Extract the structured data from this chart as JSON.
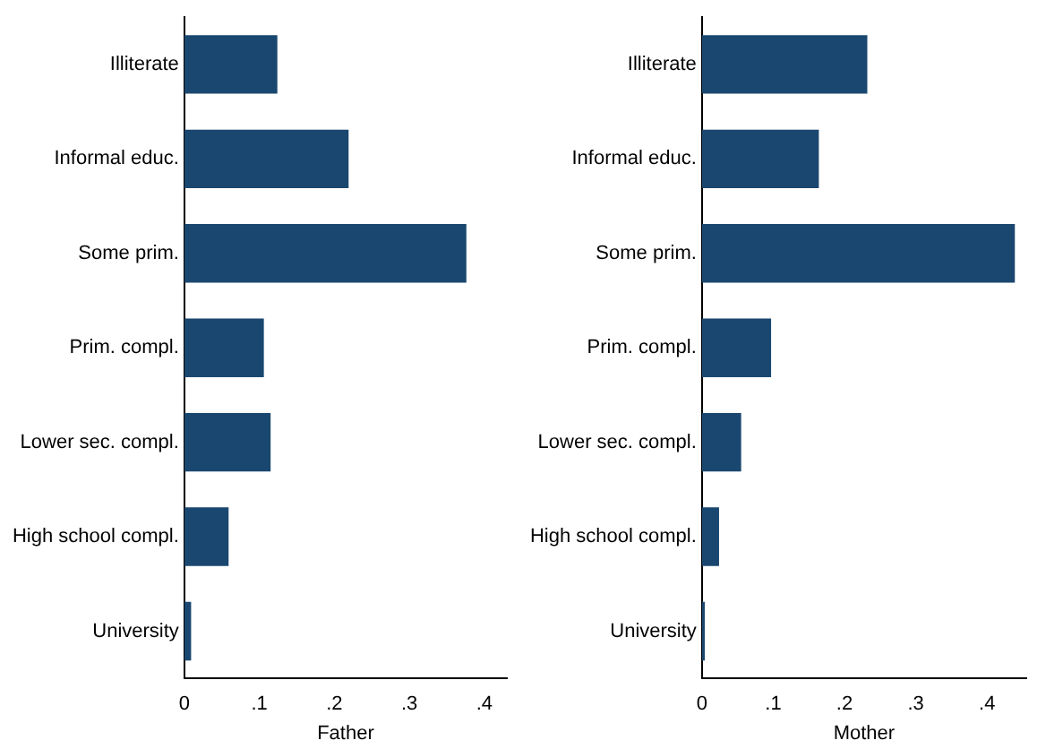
{
  "chart_data": [
    {
      "type": "bar",
      "orientation": "horizontal",
      "xlabel": "Father",
      "categories": [
        "Illiterate",
        "Informal educ.",
        "Some prim.",
        "Prim. compl.",
        "Lower sec. compl.",
        "High school compl.",
        "University"
      ],
      "values": [
        0.124,
        0.219,
        0.376,
        0.106,
        0.115,
        0.059,
        0.009
      ],
      "color": "#1a476f",
      "xlim": [
        0,
        0.43
      ],
      "xticks": [
        {
          "value": 0,
          "label": "0"
        },
        {
          "value": 0.1,
          "label": ".1"
        },
        {
          "value": 0.2,
          "label": ".2"
        },
        {
          "value": 0.3,
          "label": ".3"
        },
        {
          "value": 0.4,
          "label": ".4"
        }
      ],
      "grid": false,
      "legend": false
    },
    {
      "type": "bar",
      "orientation": "horizontal",
      "xlabel": "Mother",
      "categories": [
        "Illiterate",
        "Informal educ.",
        "Some prim.",
        "Prim. compl.",
        "Lower sec. compl.",
        "High school compl.",
        "University"
      ],
      "values": [
        0.232,
        0.164,
        0.439,
        0.097,
        0.055,
        0.024,
        0.004
      ],
      "color": "#1a476f",
      "xlim": [
        0,
        0.455
      ],
      "xticks": [
        {
          "value": 0,
          "label": "0"
        },
        {
          "value": 0.1,
          "label": ".1"
        },
        {
          "value": 0.2,
          "label": ".2"
        },
        {
          "value": 0.3,
          "label": ".3"
        },
        {
          "value": 0.4,
          "label": ".4"
        }
      ],
      "grid": false,
      "legend": false
    }
  ]
}
